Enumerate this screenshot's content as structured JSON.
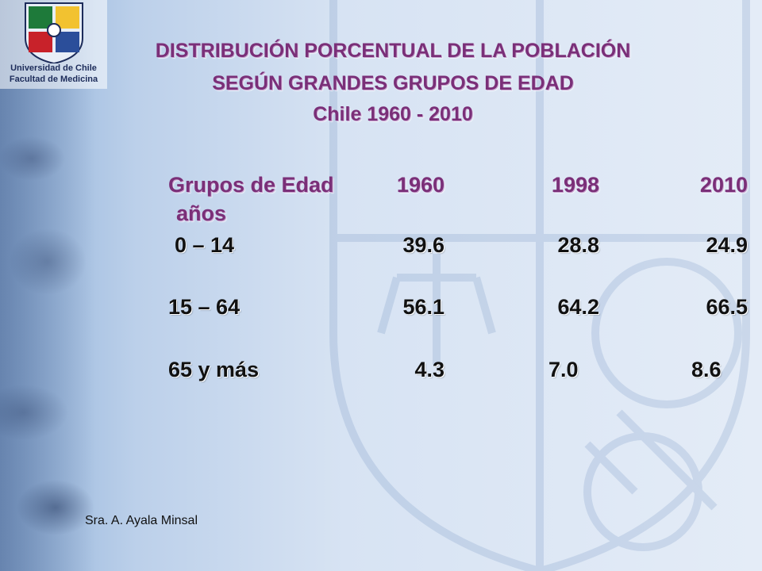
{
  "logo": {
    "line1": "Universidad de Chile",
    "line2": "Facultad de Medicina"
  },
  "title": {
    "line1": "DISTRIBUCIÓN PORCENTUAL DE LA POBLACIÓN",
    "line2": "SEGÚN GRANDES GRUPOS DE EDAD",
    "line3": "Chile 1960 - 2010"
  },
  "table": {
    "header": {
      "group_label_line1": "Grupos de Edad",
      "group_label_line2": "años",
      "years": [
        "1960",
        "1998",
        "2010"
      ]
    },
    "rows": [
      {
        "group": "0 – 14",
        "values": [
          "39.6",
          "28.8",
          "24.9"
        ]
      },
      {
        "group": "15 – 64",
        "values": [
          "56.1",
          "64.2",
          "66.5"
        ]
      },
      {
        "group": "65 y más",
        "values": [
          "4.3",
          "7.0",
          "8.6"
        ]
      }
    ]
  },
  "footer": {
    "author": "Sra. A. Ayala Minsal"
  },
  "colors": {
    "title": "#7a2f78",
    "background": "#dbe6f4",
    "text": "#111111"
  }
}
